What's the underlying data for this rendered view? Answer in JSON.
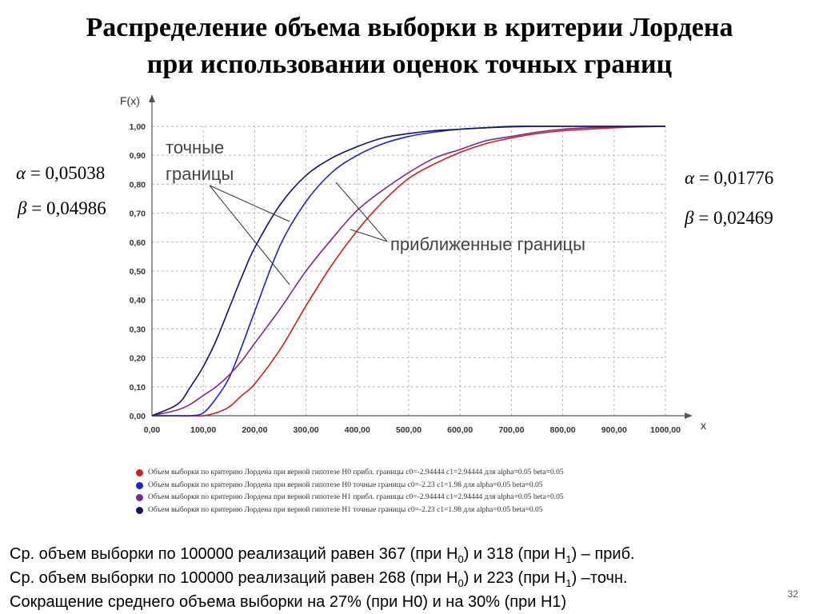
{
  "title": {
    "line1": "Распределение объема выборки в критерии Лордена",
    "line2": "при использовании оценок точных границ"
  },
  "left_params": {
    "alpha_symbol": "α",
    "alpha_value": "= 0,05038",
    "beta_symbol": "β",
    "beta_value": "= 0,04986"
  },
  "right_params": {
    "alpha_symbol": "α",
    "alpha_value": "= 0,01776",
    "beta_symbol": "β",
    "beta_value": "= 0,02469"
  },
  "chart_data": {
    "type": "line",
    "ylabel": "F(x)",
    "xlabel": "x",
    "xlim": [
      0,
      1000
    ],
    "ylim": [
      0,
      1
    ],
    "grid": true,
    "x_ticks": [
      "0,00",
      "100,00",
      "200,00",
      "300,00",
      "400,00",
      "500,00",
      "600,00",
      "700,00",
      "800,00",
      "900,00",
      "1000,00"
    ],
    "y_ticks": [
      "0,00",
      "0,10",
      "0,20",
      "0,30",
      "0,40",
      "0,50",
      "0,60",
      "0,70",
      "0,80",
      "0,90",
      "1,00"
    ],
    "annotations": [
      {
        "text_lines": [
          "точные",
          "границы"
        ]
      },
      {
        "text_lines": [
          "приближенные границы"
        ]
      }
    ],
    "x": [
      0,
      50,
      75,
      100,
      125,
      150,
      175,
      200,
      250,
      300,
      350,
      400,
      450,
      500,
      550,
      600,
      650,
      700,
      750,
      800,
      850,
      900,
      950,
      1000
    ],
    "series": [
      {
        "name": "Объем выборки по критерию Лордена при верной гипотезе H0   прибл. границы  c0=-2.94444 c1=2.94444 для  alpha=0.05 beta=0.05",
        "color": "#d02020",
        "values": [
          0,
          0,
          0,
          0,
          0.01,
          0.03,
          0.07,
          0.11,
          0.23,
          0.38,
          0.52,
          0.64,
          0.74,
          0.82,
          0.87,
          0.91,
          0.94,
          0.96,
          0.975,
          0.985,
          0.99,
          0.995,
          0.998,
          1.0
        ]
      },
      {
        "name": "Объем выборки по критерию Лордена при верной гипотезе H0   точные границы  c0=-2.23 c1=1.98 для  alpha=0.05 beta=0.05",
        "color": "#2222cc",
        "values": [
          0,
          0,
          0,
          0.01,
          0.06,
          0.13,
          0.24,
          0.36,
          0.59,
          0.74,
          0.84,
          0.9,
          0.94,
          0.965,
          0.98,
          0.99,
          0.995,
          0.998,
          1.0,
          1.0,
          1.0,
          1.0,
          1.0,
          1.0
        ]
      },
      {
        "name": "Объем выборки по критерию Лордена при верной гипотезе H1   прибл. границы  c0=-2.94444 c1=2.94444 для  alpha=0.05 beta=0.05",
        "color": "#7a2a8a",
        "values": [
          0,
          0.02,
          0.04,
          0.07,
          0.1,
          0.14,
          0.19,
          0.25,
          0.37,
          0.5,
          0.61,
          0.71,
          0.78,
          0.84,
          0.89,
          0.92,
          0.95,
          0.965,
          0.98,
          0.99,
          0.995,
          0.998,
          1.0,
          1.0
        ]
      },
      {
        "name": "Объем выборки по критерию Лордена при верной гипотезе H1   точные границы  c0=-2.23 c1=1.98 для  alpha=0.05 beta=0.05",
        "color": "#14145e",
        "values": [
          0,
          0.04,
          0.1,
          0.17,
          0.26,
          0.37,
          0.48,
          0.58,
          0.73,
          0.83,
          0.89,
          0.93,
          0.96,
          0.975,
          0.985,
          0.99,
          0.995,
          1.0,
          1.0,
          1.0,
          1.0,
          1.0,
          1.0,
          1.0
        ]
      }
    ]
  },
  "bottom_text": {
    "line1": {
      "a": "Ср. объем выборки по 100000 реализаций равен 367 (при H",
      "sub1": "0",
      "b": ") и 318 (при H",
      "sub2": "1",
      "c": ") – приб."
    },
    "line2": {
      "a": "Ср. объем выборки по 100000 реализаций равен 268 (при H",
      "sub1": "0",
      "b": ") и 223 (при H",
      "sub2": "1",
      "c": ") –точн."
    },
    "line3": "Сокращение среднего объема выборки на 27% (при H0) и на 30% (при H1)"
  },
  "page_number": "32"
}
